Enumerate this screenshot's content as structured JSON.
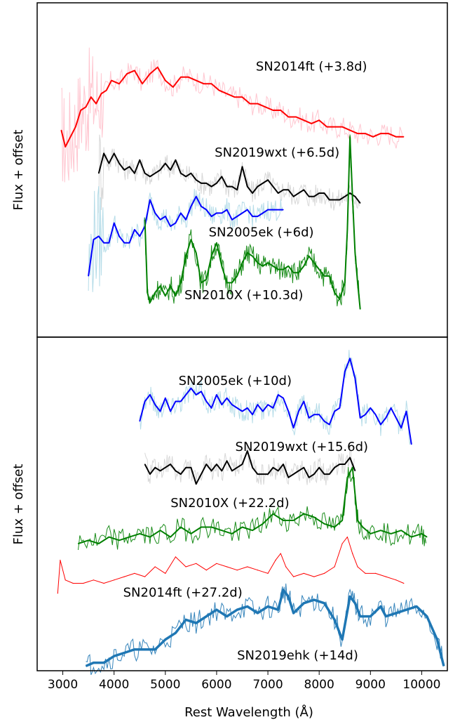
{
  "chart_data": [
    {
      "type": "line",
      "panel": "top",
      "title": "",
      "xlabel": "",
      "ylabel": "Flux + offset",
      "xlim": [
        2500,
        10500
      ],
      "ylim": [
        0,
        10
      ],
      "grid": false,
      "legend": "none",
      "series": [
        {
          "name": "SN2014ft (+3.8d)",
          "color": "#ff0000",
          "raw_color": "#ffc0cb",
          "label_at": [
            7850,
            8.0
          ],
          "x": [
            2970,
            3050,
            3150,
            3250,
            3350,
            3450,
            3550,
            3650,
            3750,
            3850,
            3950,
            4100,
            4250,
            4400,
            4550,
            4700,
            4850,
            5000,
            5150,
            5300,
            5450,
            5600,
            5750,
            5900,
            6050,
            6200,
            6350,
            6500,
            6650,
            6800,
            6950,
            7100,
            7250,
            7400,
            7550,
            7700,
            7850,
            8000,
            8150,
            8300,
            8450,
            8600,
            8750,
            8900,
            9050,
            9200,
            9350,
            9500,
            9650
          ],
          "y": [
            6.2,
            5.7,
            6.0,
            6.3,
            6.8,
            6.9,
            7.2,
            7.0,
            7.3,
            7.4,
            7.7,
            7.6,
            7.9,
            8.0,
            7.6,
            7.9,
            8.1,
            7.7,
            7.5,
            7.8,
            7.8,
            7.7,
            7.6,
            7.6,
            7.4,
            7.3,
            7.2,
            7.2,
            7.0,
            7.0,
            6.9,
            6.8,
            6.8,
            6.6,
            6.6,
            6.5,
            6.4,
            6.5,
            6.3,
            6.3,
            6.3,
            6.2,
            6.1,
            6.1,
            6.0,
            6.1,
            6.1,
            6.0,
            6.0
          ]
        },
        {
          "name": "SN2019wxt (+6.5d)",
          "color": "#000000",
          "raw_color": "#d3d3d3",
          "label_at": [
            7180,
            5.4
          ],
          "x": [
            3700,
            3800,
            3900,
            4000,
            4100,
            4200,
            4300,
            4400,
            4500,
            4600,
            4700,
            4800,
            4900,
            5000,
            5100,
            5200,
            5300,
            5400,
            5500,
            5600,
            5700,
            5800,
            5900,
            6000,
            6100,
            6200,
            6300,
            6400,
            6500,
            6600,
            6700,
            6800,
            6900,
            7000,
            7100,
            7200,
            7300,
            7400,
            7500,
            7600,
            7700,
            7800,
            7900,
            8000,
            8100,
            8200,
            8300,
            8400,
            8500,
            8600,
            8700,
            8800
          ],
          "y": [
            4.9,
            5.5,
            5.2,
            5.5,
            5.2,
            5.0,
            5.1,
            4.9,
            5.3,
            4.9,
            4.8,
            4.9,
            5.0,
            5.2,
            5.0,
            5.3,
            4.9,
            4.8,
            4.9,
            4.7,
            4.6,
            4.6,
            4.5,
            4.6,
            4.8,
            4.5,
            4.5,
            4.4,
            5.1,
            4.5,
            4.3,
            4.5,
            4.6,
            4.7,
            4.5,
            4.3,
            4.4,
            4.4,
            4.2,
            4.3,
            4.4,
            4.2,
            4.2,
            4.3,
            4.3,
            4.1,
            4.1,
            4.1,
            4.2,
            4.3,
            4.2,
            4.0
          ]
        },
        {
          "name": "SN2005ek (+6d)",
          "color": "#0000ff",
          "raw_color": "#add8e6",
          "label_at": [
            6870,
            3.0
          ],
          "x": [
            3500,
            3600,
            3700,
            3800,
            3900,
            4000,
            4100,
            4200,
            4300,
            4400,
            4500,
            4600,
            4700,
            4800,
            4900,
            5000,
            5100,
            5200,
            5300,
            5400,
            5500,
            5600,
            5700,
            5800,
            5900,
            6000,
            6100,
            6200,
            6300,
            6400,
            6500,
            6600,
            6700,
            6800,
            6900,
            7000,
            7100,
            7200,
            7300
          ],
          "y": [
            1.8,
            2.9,
            3.0,
            2.8,
            2.8,
            3.4,
            3.0,
            2.8,
            2.8,
            3.2,
            3.0,
            3.3,
            4.1,
            3.7,
            3.5,
            3.6,
            3.3,
            3.4,
            3.7,
            3.5,
            3.9,
            4.2,
            3.9,
            3.8,
            3.6,
            3.7,
            3.7,
            3.8,
            3.5,
            3.6,
            3.7,
            3.8,
            3.6,
            3.6,
            3.7,
            3.8,
            3.8,
            3.8,
            3.8
          ]
        },
        {
          "name": "SN2010X (+10.3d)",
          "color": "#008000",
          "raw_color": "#008000",
          "label_at": [
            6530,
            1.1
          ],
          "x": [
            4600,
            4650,
            4700,
            4800,
            4900,
            5000,
            5100,
            5200,
            5300,
            5400,
            5500,
            5600,
            5700,
            5800,
            5900,
            6000,
            6100,
            6200,
            6300,
            6400,
            6500,
            6600,
            6700,
            6800,
            6900,
            7000,
            7100,
            7200,
            7300,
            7400,
            7500,
            7600,
            7700,
            7800,
            7900,
            8000,
            8100,
            8200,
            8300,
            8400,
            8500,
            8550,
            8600,
            8650,
            8700,
            8750,
            8800
          ],
          "y": [
            3.5,
            1.3,
            1.0,
            1.3,
            1.5,
            1.2,
            1.5,
            1.2,
            1.6,
            2.4,
            2.9,
            2.5,
            1.6,
            1.7,
            2.4,
            2.8,
            2.1,
            1.6,
            1.6,
            1.8,
            2.2,
            2.5,
            2.4,
            2.2,
            2.1,
            2.2,
            2.1,
            2.0,
            2.0,
            2.1,
            1.9,
            1.9,
            2.1,
            2.4,
            2.2,
            2.0,
            1.8,
            1.8,
            1.3,
            1.1,
            1.6,
            3.2,
            6.0,
            4.2,
            2.5,
            1.6,
            0.8
          ]
        }
      ]
    },
    {
      "type": "line",
      "panel": "bottom",
      "title": "",
      "xlabel": "Rest Wavelength (Å)",
      "ylabel": "Flux + offset",
      "xlim": [
        2500,
        10500
      ],
      "ylim": [
        0,
        10
      ],
      "grid": false,
      "legend": "none",
      "xticks": [
        3000,
        4000,
        5000,
        6000,
        7000,
        8000,
        9000,
        10000
      ],
      "series": [
        {
          "name": "SN2005ek (+10d)",
          "color": "#0000ff",
          "raw_color": "#add8e6",
          "label_at": [
            6360,
            8.6
          ],
          "x": [
            4500,
            4600,
            4700,
            4800,
            4900,
            5000,
            5100,
            5200,
            5300,
            5400,
            5500,
            5600,
            5700,
            5800,
            5900,
            6000,
            6100,
            6200,
            6300,
            6400,
            6500,
            6600,
            6700,
            6800,
            6900,
            7000,
            7100,
            7200,
            7300,
            7400,
            7500,
            7600,
            7700,
            7800,
            7900,
            8000,
            8100,
            8200,
            8300,
            8400,
            8500,
            8600,
            8700,
            8800,
            8900,
            9000,
            9100,
            9200,
            9300,
            9400,
            9500,
            9600,
            9700,
            9800
          ],
          "y": [
            7.5,
            8.1,
            8.3,
            8.0,
            7.8,
            8.2,
            7.8,
            8.1,
            8.1,
            8.3,
            8.5,
            8.3,
            8.4,
            8.1,
            7.9,
            8.3,
            8.0,
            8.2,
            8.0,
            7.9,
            7.8,
            7.9,
            7.7,
            8.0,
            7.8,
            8.0,
            7.9,
            8.3,
            8.2,
            7.8,
            7.3,
            7.8,
            8.1,
            7.6,
            7.7,
            7.7,
            7.5,
            7.4,
            7.8,
            7.9,
            9.0,
            9.4,
            8.8,
            7.6,
            7.7,
            7.9,
            7.7,
            7.4,
            7.6,
            7.9,
            7.6,
            7.3,
            7.8,
            6.8
          ]
        },
        {
          "name": "SN2019wxt (+15.6d)",
          "color": "#000000",
          "raw_color": "#d3d3d3",
          "label_at": [
            7660,
            6.6
          ],
          "x": [
            4600,
            4700,
            4800,
            4900,
            5000,
            5100,
            5200,
            5300,
            5400,
            5500,
            5600,
            5700,
            5800,
            5900,
            6000,
            6100,
            6200,
            6300,
            6400,
            6500,
            6600,
            6700,
            6800,
            6900,
            7000,
            7100,
            7200,
            7300,
            7400,
            7500,
            7600,
            7700,
            7800,
            7900,
            8000,
            8100,
            8200,
            8300,
            8400,
            8500,
            8600,
            8700
          ],
          "y": [
            6.2,
            5.9,
            6.1,
            6.0,
            6.1,
            6.2,
            6.0,
            5.9,
            6.1,
            6.1,
            5.6,
            5.9,
            6.2,
            6.0,
            6.2,
            6.0,
            6.3,
            6.0,
            6.1,
            6.2,
            6.6,
            6.1,
            5.9,
            5.9,
            5.9,
            6.1,
            6.0,
            6.2,
            5.8,
            5.9,
            6.0,
            6.1,
            5.8,
            5.9,
            6.1,
            5.9,
            5.9,
            6.1,
            6.2,
            6.2,
            6.4,
            6.0
          ]
        },
        {
          "name": "SN2010X (+22.2d)",
          "color": "#008000",
          "raw_color": "#008000",
          "label_at": [
            6260,
            4.9
          ],
          "x": [
            3300,
            3500,
            3700,
            3900,
            4100,
            4300,
            4500,
            4700,
            4900,
            5100,
            5300,
            5500,
            5700,
            5900,
            6100,
            6300,
            6500,
            6700,
            6900,
            7100,
            7300,
            7500,
            7700,
            7900,
            8100,
            8300,
            8450,
            8550,
            8650,
            8750,
            8850,
            9000,
            9200,
            9400,
            9600,
            9800,
            10000,
            10100
          ],
          "y": [
            3.8,
            3.9,
            3.8,
            4.0,
            3.9,
            4.0,
            4.1,
            4.0,
            4.2,
            4.0,
            4.3,
            4.1,
            4.3,
            4.3,
            4.2,
            4.1,
            4.3,
            4.2,
            4.4,
            4.7,
            4.5,
            4.5,
            4.7,
            4.6,
            4.4,
            4.3,
            4.5,
            5.8,
            6.1,
            4.5,
            4.3,
            4.1,
            4.2,
            4.1,
            4.2,
            4.0,
            4.1,
            4.0
          ]
        },
        {
          "name": "SN2014ft (+27.2d)",
          "color": "#ff0000",
          "raw_color": "#ff0000",
          "thin": true,
          "label_at": [
            5340,
            2.2
          ],
          "x": [
            2900,
            2950,
            3050,
            3200,
            3400,
            3600,
            3800,
            4000,
            4200,
            4400,
            4600,
            4800,
            5000,
            5200,
            5400,
            5600,
            5800,
            6000,
            6200,
            6400,
            6600,
            6800,
            7000,
            7150,
            7250,
            7350,
            7500,
            7700,
            7900,
            8100,
            8300,
            8450,
            8550,
            8650,
            8750,
            8900,
            9100,
            9300,
            9500,
            9650
          ],
          "y": [
            2.3,
            3.3,
            2.7,
            2.6,
            2.6,
            2.7,
            2.6,
            2.7,
            2.8,
            2.9,
            2.8,
            3.1,
            2.9,
            3.4,
            3.1,
            3.2,
            3.0,
            3.2,
            3.1,
            3.0,
            3.1,
            3.0,
            2.9,
            3.3,
            3.5,
            3.1,
            2.8,
            2.9,
            2.8,
            2.9,
            3.1,
            3.8,
            4.0,
            3.5,
            3.1,
            2.9,
            2.9,
            2.8,
            2.7,
            2.6
          ]
        },
        {
          "name": "SN2019ehk (+14d)",
          "color": "#1f77b4",
          "raw_color": "#1f77b4",
          "thick": true,
          "label_at": [
            7580,
            0.3
          ],
          "x": [
            3450,
            3600,
            3800,
            4000,
            4200,
            4400,
            4600,
            4800,
            5000,
            5200,
            5400,
            5600,
            5800,
            6000,
            6200,
            6400,
            6600,
            6800,
            7000,
            7200,
            7300,
            7400,
            7500,
            7700,
            7900,
            8100,
            8300,
            8450,
            8600,
            8700,
            8800,
            9000,
            9200,
            9300,
            9500,
            9700,
            9900,
            10100,
            10300,
            10430
          ],
          "y": [
            0.1,
            0.2,
            0.2,
            0.4,
            0.5,
            0.6,
            0.6,
            0.6,
            0.9,
            1.1,
            1.5,
            1.4,
            1.6,
            1.8,
            1.6,
            1.8,
            1.9,
            1.7,
            1.9,
            1.8,
            2.4,
            2.2,
            1.7,
            2.0,
            2.1,
            2.0,
            1.5,
            0.9,
            2.2,
            2.0,
            1.6,
            1.6,
            1.9,
            1.6,
            1.7,
            1.8,
            1.9,
            1.6,
            0.9,
            0.1
          ]
        }
      ]
    }
  ]
}
